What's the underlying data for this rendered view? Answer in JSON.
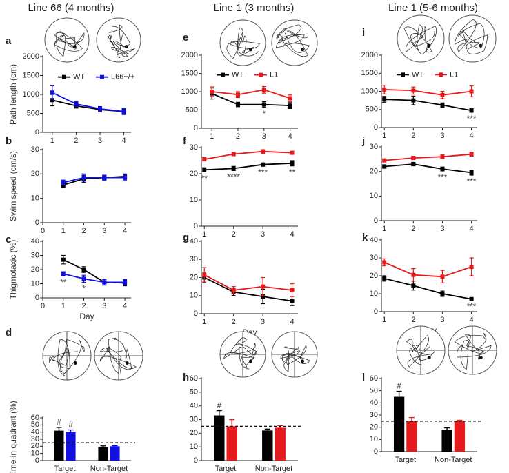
{
  "chart_data": [
    {
      "type": "line",
      "panel": "a",
      "title": "Line 66 (4 months)",
      "ylabel": "Path length (cm)",
      "x": [
        1,
        2,
        3,
        4
      ],
      "series": [
        {
          "name": "WT",
          "color": "#000000",
          "values": [
            850,
            700,
            600,
            550
          ],
          "errors": [
            150,
            60,
            60,
            60
          ]
        },
        {
          "name": "L66+/+",
          "color": "#1010e0",
          "values": [
            1050,
            750,
            620,
            550
          ],
          "errors": [
            180,
            60,
            60,
            80
          ]
        }
      ],
      "xlim": [
        0.6,
        4.3
      ],
      "ylim": [
        0,
        2000
      ],
      "xticks": [
        1,
        2,
        3,
        4
      ],
      "yticks": [
        0,
        500,
        1000,
        1500,
        2000
      ],
      "legend": true,
      "annotations": []
    },
    {
      "type": "line",
      "panel": "b",
      "ylabel": "Swim speed (cm/s)",
      "x": [
        1,
        2,
        3,
        4
      ],
      "series": [
        {
          "name": "WT",
          "color": "#000000",
          "values": [
            15.5,
            18,
            18.5,
            19
          ],
          "errors": [
            1,
            1.5,
            1,
            1
          ]
        },
        {
          "name": "L66+/+",
          "color": "#1010e0",
          "values": [
            16.5,
            18.5,
            18.5,
            18.5
          ],
          "errors": [
            1,
            1.5,
            1,
            1
          ]
        }
      ],
      "xlim": [
        0,
        4.3
      ],
      "ylim": [
        0,
        30
      ],
      "xticks": [
        0,
        1,
        2,
        3,
        4
      ],
      "yticks": [
        0,
        10,
        20,
        30
      ],
      "legend": false,
      "annotations": []
    },
    {
      "type": "line",
      "panel": "c",
      "ylabel": "Thigmotaxic (%)",
      "xlabel": "Day",
      "x": [
        1,
        2,
        3,
        4
      ],
      "series": [
        {
          "name": "WT",
          "color": "#000000",
          "values": [
            27,
            20,
            11,
            10.5
          ],
          "errors": [
            3,
            2,
            2,
            2
          ]
        },
        {
          "name": "L66+/+",
          "color": "#1010e0",
          "values": [
            17,
            13.5,
            11,
            11
          ],
          "errors": [
            1.5,
            2.5,
            2,
            2
          ]
        }
      ],
      "xlim": [
        0,
        4.3
      ],
      "ylim": [
        0,
        40
      ],
      "xticks": [
        0,
        1,
        2,
        3,
        4
      ],
      "yticks": [
        0,
        10,
        20,
        30,
        40
      ],
      "legend": false,
      "annotations": [
        {
          "text": "**",
          "x": 1
        },
        {
          "text": "*",
          "x": 2
        }
      ]
    },
    {
      "type": "bar",
      "panel": "d",
      "ylabel": "Time in quadrant (%)",
      "categories": [
        "Target",
        "Non-Target"
      ],
      "series": [
        {
          "name": "WT",
          "color": "#000000",
          "values": [
            42,
            19
          ],
          "errors": [
            4.5,
            1.5
          ]
        },
        {
          "name": "L66+/+",
          "color": "#1010e0",
          "values": [
            40,
            20
          ],
          "errors": [
            3,
            0.8
          ]
        }
      ],
      "ylim": [
        0,
        60
      ],
      "yticks": [
        0,
        10,
        20,
        30,
        40,
        50,
        60
      ],
      "reference_line": 25,
      "annotations": [
        {
          "text": "#",
          "category": "Target",
          "series": "WT"
        },
        {
          "text": "#",
          "category": "Target",
          "series": "L66+/+"
        }
      ]
    },
    {
      "type": "line",
      "panel": "e",
      "title": "Line 1 (3 months)",
      "x": [
        1,
        2,
        3,
        4
      ],
      "series": [
        {
          "name": "WT",
          "color": "#000000",
          "values": [
            950,
            650,
            650,
            620
          ],
          "errors": [
            150,
            60,
            80,
            80
          ]
        },
        {
          "name": "L1",
          "color": "#e41a1c",
          "values": [
            1000,
            920,
            1050,
            820
          ],
          "errors": [
            130,
            80,
            90,
            90
          ]
        }
      ],
      "xlim": [
        0.6,
        4.3
      ],
      "ylim": [
        0,
        2000
      ],
      "xticks": [
        1,
        2,
        3,
        4
      ],
      "yticks": [
        0,
        500,
        1000,
        1500,
        2000
      ],
      "legend": true,
      "annotations": [
        {
          "text": "*",
          "x": 3
        }
      ]
    },
    {
      "type": "line",
      "panel": "f",
      "x": [
        1,
        2,
        3,
        4
      ],
      "series": [
        {
          "name": "WT",
          "color": "#000000",
          "values": [
            21.5,
            22,
            23.5,
            24
          ],
          "errors": [
            0.8,
            0.8,
            0.6,
            1
          ]
        },
        {
          "name": "L1",
          "color": "#e41a1c",
          "values": [
            25.5,
            27.5,
            28.5,
            28
          ],
          "errors": [
            0.6,
            0.6,
            0.7,
            0.6
          ]
        }
      ],
      "xlim": [
        0.9,
        4.2
      ],
      "ylim": [
        0,
        30
      ],
      "xticks": [
        1,
        2,
        3,
        4
      ],
      "yticks": [
        0,
        10,
        20,
        30
      ],
      "legend": false,
      "annotations": [
        {
          "text": "**",
          "x": 1
        },
        {
          "text": "****",
          "x": 2
        },
        {
          "text": "***",
          "x": 3
        },
        {
          "text": "**",
          "x": 4
        }
      ]
    },
    {
      "type": "line",
      "panel": "g",
      "xlabel": "Day",
      "x": [
        1,
        2,
        3,
        4
      ],
      "series": [
        {
          "name": "WT",
          "color": "#000000",
          "values": [
            20,
            12,
            9.5,
            7
          ],
          "errors": [
            3,
            2,
            4,
            2.5
          ]
        },
        {
          "name": "L1",
          "color": "#e41a1c",
          "values": [
            21.5,
            13,
            15,
            13
          ],
          "errors": [
            4,
            2,
            5,
            3.5
          ]
        }
      ],
      "xlim": [
        0.9,
        4.2
      ],
      "ylim": [
        0,
        40
      ],
      "xticks": [
        1,
        2,
        3,
        4
      ],
      "yticks": [
        0,
        10,
        20,
        30,
        40
      ],
      "legend": false,
      "annotations": []
    },
    {
      "type": "bar",
      "panel": "h",
      "categories": [
        "Target",
        "Non-Target"
      ],
      "series": [
        {
          "name": "WT",
          "color": "#000000",
          "values": [
            33,
            22
          ],
          "errors": [
            3.5,
            1
          ]
        },
        {
          "name": "L1",
          "color": "#e41a1c",
          "values": [
            25,
            24
          ],
          "errors": [
            5,
            1.5
          ]
        }
      ],
      "ylim": [
        0,
        60
      ],
      "yticks": [
        0,
        10,
        20,
        30,
        40,
        50,
        60
      ],
      "reference_line": 25,
      "annotations": [
        {
          "text": "#",
          "category": "Target",
          "series": "WT"
        }
      ]
    },
    {
      "type": "line",
      "panel": "i",
      "title": "Line 1 (5-6 months)",
      "x": [
        1,
        2,
        3,
        4
      ],
      "series": [
        {
          "name": "WT",
          "color": "#000000",
          "values": [
            780,
            750,
            620,
            470
          ],
          "errors": [
            80,
            120,
            60,
            50
          ]
        },
        {
          "name": "L1",
          "color": "#e41a1c",
          "values": [
            1050,
            1020,
            900,
            1000
          ],
          "errors": [
            120,
            100,
            100,
            150
          ]
        }
      ],
      "xlim": [
        0.9,
        4.2
      ],
      "ylim": [
        0,
        2000
      ],
      "xticks": [
        1,
        2,
        3,
        4
      ],
      "yticks": [
        0,
        500,
        1000,
        1500,
        2000
      ],
      "legend": true,
      "annotations": [
        {
          "text": "***",
          "x": 4
        }
      ]
    },
    {
      "type": "line",
      "panel": "j",
      "x": [
        1,
        2,
        3,
        4
      ],
      "series": [
        {
          "name": "WT",
          "color": "#000000",
          "values": [
            22,
            23,
            21,
            19.5
          ],
          "errors": [
            0.7,
            0.7,
            0.8,
            1
          ]
        },
        {
          "name": "L1",
          "color": "#e41a1c",
          "values": [
            24.5,
            25.5,
            26,
            27
          ],
          "errors": [
            0.5,
            0.6,
            0.7,
            0.8
          ]
        }
      ],
      "xlim": [
        0.9,
        4.2
      ],
      "ylim": [
        0,
        30
      ],
      "xticks": [
        1,
        2,
        3,
        4
      ],
      "yticks": [
        0,
        10,
        20,
        30
      ],
      "legend": false,
      "annotations": [
        {
          "text": "***",
          "x": 3
        },
        {
          "text": "***",
          "x": 4
        }
      ]
    },
    {
      "type": "line",
      "panel": "k",
      "xlabel": "Day",
      "x": [
        1,
        2,
        3,
        4
      ],
      "series": [
        {
          "name": "WT",
          "color": "#000000",
          "values": [
            18.5,
            14.5,
            10,
            7
          ],
          "errors": [
            1.5,
            2.5,
            1.5,
            0.5
          ]
        },
        {
          "name": "L1",
          "color": "#e41a1c",
          "values": [
            27.5,
            20.5,
            19.5,
            25
          ],
          "errors": [
            2,
            3.5,
            3.5,
            5
          ]
        }
      ],
      "xlim": [
        0.9,
        4.2
      ],
      "ylim": [
        0,
        40
      ],
      "xticks": [
        1,
        2,
        3,
        4
      ],
      "yticks": [
        0,
        10,
        20,
        30,
        40
      ],
      "legend": false,
      "annotations": [
        {
          "text": "***",
          "x": 4
        }
      ]
    },
    {
      "type": "bar",
      "panel": "l",
      "categories": [
        "Target",
        "Non-Target"
      ],
      "series": [
        {
          "name": "WT",
          "color": "#000000",
          "values": [
            45,
            18
          ],
          "errors": [
            4.5,
            1.5
          ]
        },
        {
          "name": "L1",
          "color": "#e41a1c",
          "values": [
            25,
            25
          ],
          "errors": [
            3,
            0.8
          ]
        }
      ],
      "ylim": [
        0,
        60
      ],
      "yticks": [
        0,
        10,
        20,
        30,
        40,
        50,
        60
      ],
      "reference_line": 25,
      "annotations": [
        {
          "text": "#",
          "category": "Target",
          "series": "WT"
        }
      ]
    }
  ]
}
